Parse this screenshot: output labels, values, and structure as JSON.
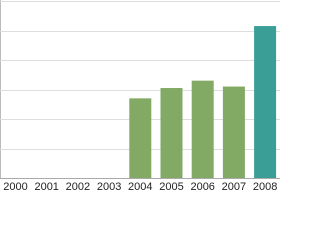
{
  "chart_data": {
    "type": "bar",
    "categories": [
      "2000",
      "2001",
      "2002",
      "2003",
      "2004",
      "2005",
      "2006",
      "2007",
      "2008"
    ],
    "values": [
      null,
      null,
      null,
      null,
      2.7,
      3.05,
      3.3,
      3.1,
      5.15
    ],
    "colors": [
      "#82aa64",
      "#82aa64",
      "#82aa64",
      "#82aa64",
      "#82aa64",
      "#82aa64",
      "#82aa64",
      "#82aa64",
      "#3a9e96"
    ],
    "ylim": [
      0,
      6
    ],
    "yticks": [
      0,
      1,
      2,
      3,
      4,
      5,
      6
    ],
    "grid": true
  }
}
